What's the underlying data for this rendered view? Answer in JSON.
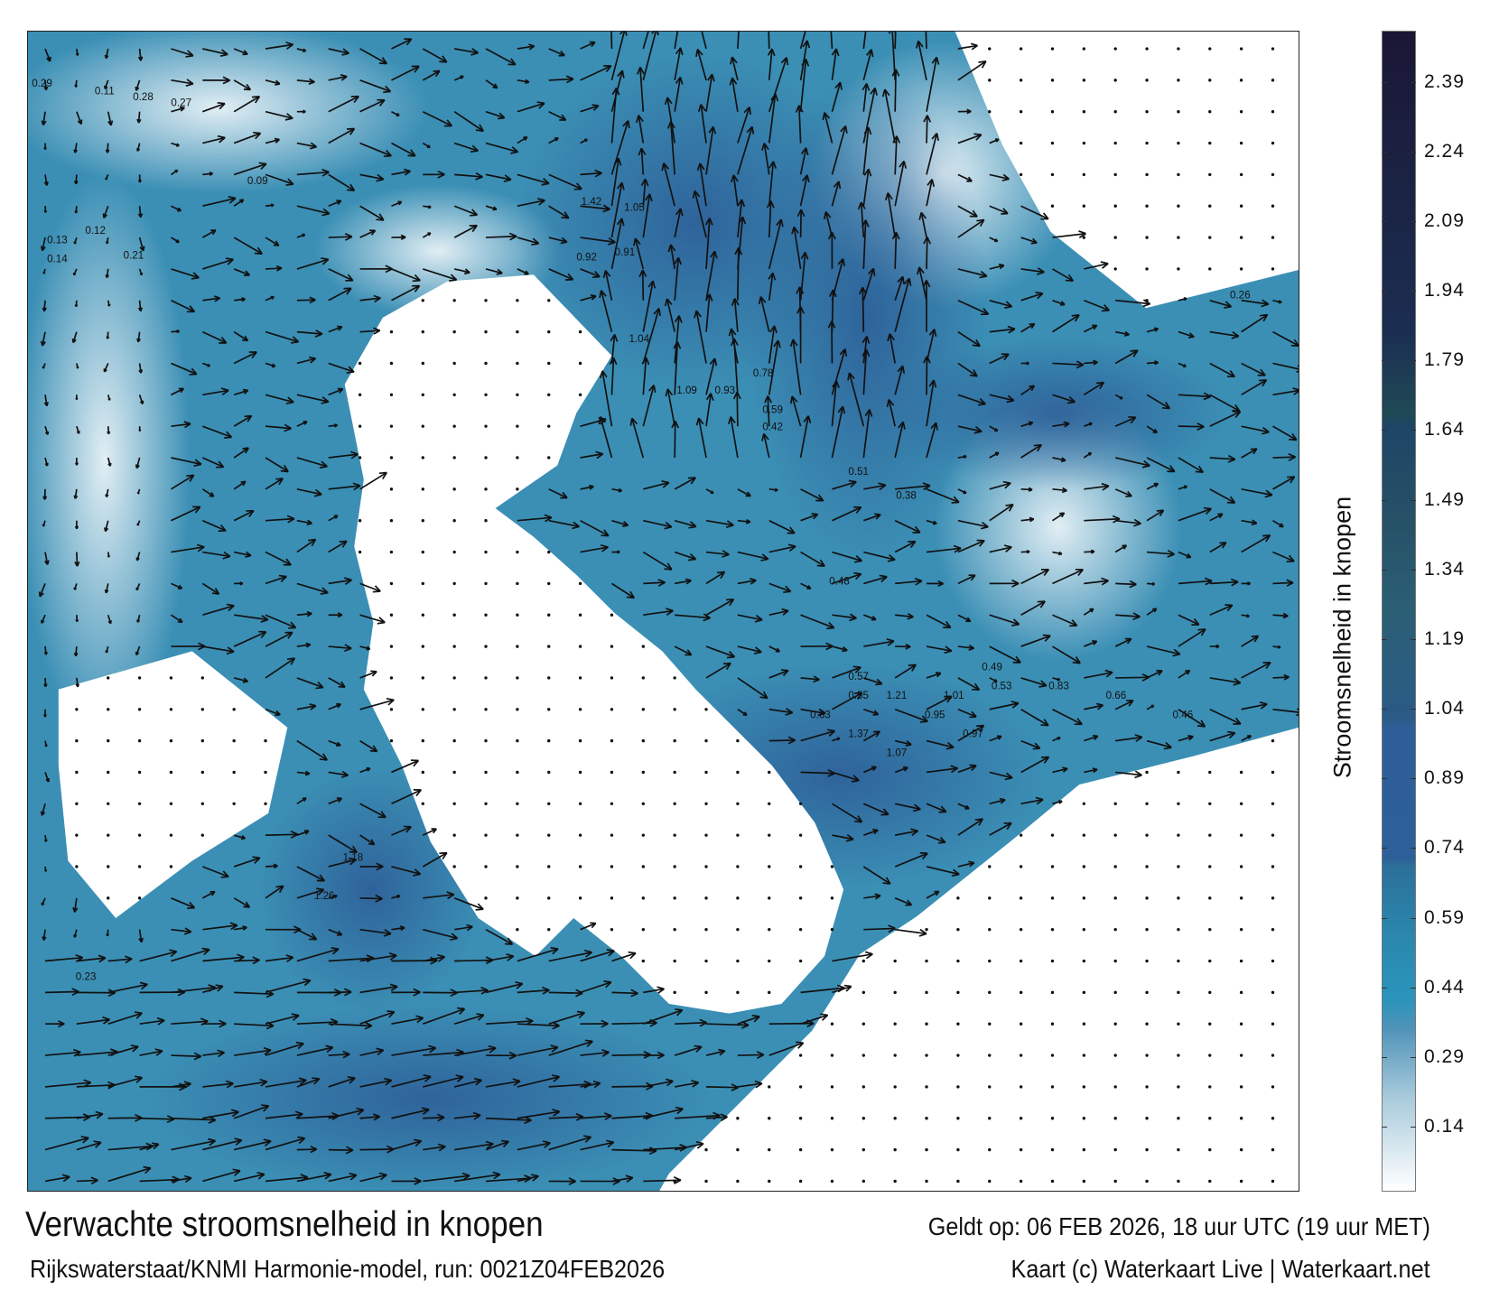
{
  "title": "Verwachte stroomsnelheid in knopen",
  "subtitle": "Rijkswaterstaat/KNMI Harmonie-model, run: 0021Z04FEB2026",
  "valid_time": "Geldt op: 06 FEB 2026, 18 uur UTC (19 uur MET)",
  "credit": "Kaart (c) Waterkaart Live | Waterkaart.net",
  "colorbar": {
    "title": "Stroomsnelheid in knopen",
    "range": [
      0,
      2.5
    ],
    "ticks": [
      "0.14",
      "0.29",
      "0.44",
      "0.59",
      "0.74",
      "0.89",
      "1.04",
      "1.19",
      "1.34",
      "1.49",
      "1.64",
      "1.79",
      "1.94",
      "2.09",
      "2.24",
      "2.39"
    ],
    "colors": {
      "low": "#ffffff",
      "mid": "#2a94bb",
      "high": "#1b1636",
      "land": "#ffffff"
    }
  },
  "map": {
    "sample_labels": [
      "0.29",
      "0.11",
      "0.28",
      "0.27",
      "0.12",
      "0.13",
      "0.14",
      "0.09",
      "0.21",
      "0.23",
      "1.42",
      "1.05",
      "0.92",
      "0.91",
      "1.04",
      "1.09",
      "0.93",
      "0.78",
      "0.59",
      "0.42",
      "0.48",
      "0.51",
      "0.38",
      "0.57",
      "0.55",
      "0.63",
      "1.37",
      "1.21",
      "1.07",
      "0.95",
      "0.97",
      "1.01",
      "0.83",
      "0.66",
      "1.26",
      "1.18",
      "0.53",
      "0.49",
      "0.46",
      "0.26"
    ]
  }
}
